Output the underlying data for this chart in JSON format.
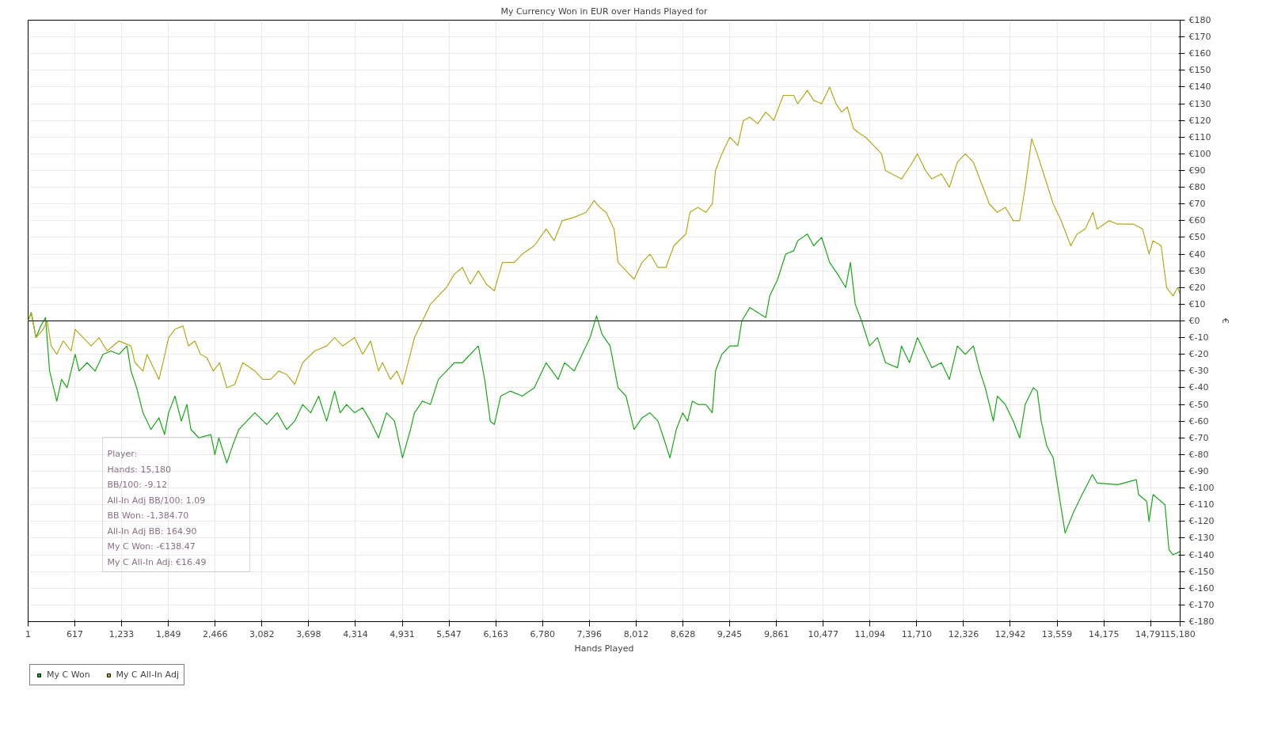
{
  "chart_data": {
    "type": "line",
    "title": "My Currency Won in EUR over Hands Played for",
    "xlabel": "Hands Played",
    "ylabel": "€",
    "xlim": [
      1,
      15180
    ],
    "ylim": [
      -180,
      180
    ],
    "xticks": [
      1,
      617,
      {
        "value": 1233,
        "label": "1,233"
      },
      {
        "value": 1849,
        "label": "1,849"
      },
      {
        "value": 2466,
        "label": "2,466"
      },
      {
        "value": 3082,
        "label": "3,082"
      },
      {
        "value": 3698,
        "label": "3,698"
      },
      {
        "value": 4314,
        "label": "4,314"
      },
      {
        "value": 4931,
        "label": "4,931"
      },
      {
        "value": 5547,
        "label": "5,547"
      },
      {
        "value": 6163,
        "label": "6,163"
      },
      {
        "value": 6780,
        "label": "6,780"
      },
      {
        "value": 7396,
        "label": "7,396"
      },
      {
        "value": 8012,
        "label": "8,012"
      },
      {
        "value": 8628,
        "label": "8,628"
      },
      {
        "value": 9245,
        "label": "9,245"
      },
      {
        "value": 9861,
        "label": "9,861"
      },
      {
        "value": 10477,
        "label": "10,477"
      },
      {
        "value": 11094,
        "label": "11,094"
      },
      {
        "value": 11710,
        "label": "11,710"
      },
      {
        "value": 12326,
        "label": "12,326"
      },
      {
        "value": 12942,
        "label": "12,942"
      },
      {
        "value": 13559,
        "label": "13,559"
      },
      {
        "value": 14175,
        "label": "14,175"
      },
      {
        "value": 14791,
        "label": "14,791"
      },
      {
        "value": 15180,
        "label": "15,180"
      }
    ],
    "yticks": [
      {
        "value": -180,
        "label": "€-180"
      },
      {
        "value": -170,
        "label": "€-170"
      },
      {
        "value": -160,
        "label": "€-160"
      },
      {
        "value": -150,
        "label": "€-150"
      },
      {
        "value": -140,
        "label": "€-140"
      },
      {
        "value": -130,
        "label": "€-130"
      },
      {
        "value": -120,
        "label": "€-120"
      },
      {
        "value": -110,
        "label": "€-110"
      },
      {
        "value": -100,
        "label": "€-100"
      },
      {
        "value": -90,
        "label": "€-90"
      },
      {
        "value": -80,
        "label": "€-80"
      },
      {
        "value": -70,
        "label": "€-70"
      },
      {
        "value": -60,
        "label": "€-60"
      },
      {
        "value": -50,
        "label": "€-50"
      },
      {
        "value": -40,
        "label": "€-40"
      },
      {
        "value": -30,
        "label": "€-30"
      },
      {
        "value": -20,
        "label": "€-20"
      },
      {
        "value": -10,
        "label": "€-10"
      },
      {
        "value": 0,
        "label": "€0"
      },
      {
        "value": 10,
        "label": "€10"
      },
      {
        "value": 20,
        "label": "€20"
      },
      {
        "value": 30,
        "label": "€30"
      },
      {
        "value": 40,
        "label": "€40"
      },
      {
        "value": 50,
        "label": "€50"
      },
      {
        "value": 60,
        "label": "€60"
      },
      {
        "value": 70,
        "label": "€70"
      },
      {
        "value": 80,
        "label": "€80"
      },
      {
        "value": 90,
        "label": "€90"
      },
      {
        "value": 100,
        "label": "€100"
      },
      {
        "value": 110,
        "label": "€110"
      },
      {
        "value": 120,
        "label": "€120"
      },
      {
        "value": 130,
        "label": "€130"
      },
      {
        "value": 140,
        "label": "€140"
      },
      {
        "value": 150,
        "label": "€150"
      },
      {
        "value": 160,
        "label": "€160"
      },
      {
        "value": 170,
        "label": "€170"
      },
      {
        "value": 180,
        "label": "€180"
      }
    ],
    "grid": true,
    "legend": "bottom left",
    "marker": "none",
    "line_style": "solid",
    "ref_lines": [
      {
        "axis": "y",
        "value": 0,
        "label": null,
        "color": "#000000"
      }
    ],
    "annotations": [
      "Player:",
      "Hands: 15,180",
      "BB/100: -9.12",
      "All-In Adj BB/100: 1.09",
      "BB Won: -1,384.70",
      "All-In Adj BB: 164.90",
      "My C Won: -€138.47",
      "My C All-In Adj: €16.49"
    ],
    "series": [
      {
        "name": "My C Won",
        "color": "#1aa61a",
        "x": [
          1,
          42,
          105,
          168,
          231,
          284,
          379,
          442,
          515,
          621,
          673,
          778,
          884,
          989,
          1094,
          1199,
          1304,
          1357,
          1431,
          1515,
          1620,
          1725,
          1799,
          1852,
          1936,
          2020,
          2093,
          2146,
          2251,
          2409,
          2462,
          2514,
          2619,
          2693,
          2777,
          2882,
          2988,
          3146,
          3282,
          3408,
          3514,
          3619,
          3724,
          3829,
          3934,
          4040,
          4113,
          4197,
          4303,
          4408,
          4513,
          4618,
          4723,
          4829,
          4934,
          5039,
          5092,
          5197,
          5302,
          5407,
          5512,
          5618,
          5723,
          5828,
          5933,
          6017,
          6091,
          6144,
          6228,
          6354,
          6512,
          6670,
          6827,
          6985,
          7069,
          7196,
          7301,
          7406,
          7490,
          7564,
          7669,
          7774,
          7879,
          7985,
          8090,
          8195,
          8300,
          8374,
          8458,
          8542,
          8626,
          8690,
          8753,
          8826,
          8931,
          9016,
          9058,
          9142,
          9247,
          9352,
          9405,
          9510,
          9615,
          9720,
          9773,
          9878,
          9983,
          10089,
          10141,
          10268,
          10352,
          10457,
          10562,
          10667,
          10773,
          10836,
          10899,
          10983,
          11088,
          11193,
          11298,
          11456,
          11509,
          11614,
          11719,
          11825,
          11909,
          12035,
          12140,
          12245,
          12350,
          12456,
          12540,
          12613,
          12719,
          12771,
          12876,
          12982,
          13066,
          13139,
          13245,
          13297,
          13350,
          13424,
          13508,
          13665,
          13771,
          13876,
          14023,
          14086,
          14360,
          14602,
          14633,
          14739,
          14770,
          14823,
          14980,
          15033,
          15086,
          15180
        ],
        "values": [
          0,
          5,
          -10,
          -3,
          2,
          -30,
          -48,
          -35,
          -40,
          -20,
          -30,
          -25,
          -30,
          -20,
          -18,
          -20,
          -15,
          -30,
          -40,
          -55,
          -65,
          -58,
          -68,
          -55,
          -45,
          -60,
          -50,
          -65,
          -70,
          -68,
          -80,
          -70,
          -85,
          -75,
          -65,
          -60,
          -55,
          -62,
          -55,
          -65,
          -60,
          -50,
          -55,
          -45,
          -60,
          -42,
          -55,
          -50,
          -55,
          -52,
          -60,
          -70,
          -55,
          -60,
          -82,
          -65,
          -55,
          -48,
          -50,
          -35,
          -30,
          -25,
          -25,
          -20,
          -15,
          -35,
          -60,
          -62,
          -45,
          -42,
          -45,
          -40,
          -25,
          -35,
          -25,
          -30,
          -20,
          -10,
          3,
          -8,
          -15,
          -40,
          -45,
          -65,
          -58,
          -55,
          -60,
          -70,
          -82,
          -65,
          -55,
          -60,
          -48,
          -50,
          -50,
          -55,
          -30,
          -20,
          -15,
          -15,
          0,
          8,
          5,
          2,
          15,
          25,
          40,
          42,
          48,
          52,
          45,
          50,
          35,
          28,
          20,
          35,
          10,
          0,
          -15,
          -10,
          -25,
          -28,
          -15,
          -25,
          -10,
          -20,
          -28,
          -25,
          -35,
          -15,
          -20,
          -15,
          -30,
          -40,
          -60,
          -45,
          -50,
          -60,
          -70,
          -50,
          -40,
          -42,
          -60,
          -75,
          -82,
          -127,
          -115,
          -105,
          -92,
          -97,
          -98,
          -95,
          -104,
          -108,
          -120,
          -104,
          -110,
          -137,
          -140,
          -138
        ]
      },
      {
        "name": "My C All-In Adj",
        "color": "#b3a81c",
        "x": [
          1,
          42,
          105,
          200,
          252,
          305,
          379,
          463,
          568,
          621,
          726,
          831,
          936,
          1041,
          1199,
          1357,
          1410,
          1515,
          1568,
          1620,
          1725,
          1778,
          1852,
          1936,
          2041,
          2114,
          2198,
          2272,
          2356,
          2440,
          2524,
          2619,
          2724,
          2829,
          2988,
          3093,
          3198,
          3303,
          3408,
          3514,
          3619,
          3777,
          3934,
          4040,
          4145,
          4303,
          4408,
          4513,
          4618,
          4671,
          4776,
          4860,
          4934,
          5008,
          5092,
          5197,
          5302,
          5407,
          5512,
          5618,
          5723,
          5828,
          5933,
          6038,
          6144,
          6249,
          6407,
          6512,
          6670,
          6827,
          6932,
          7038,
          7196,
          7353,
          7459,
          7532,
          7617,
          7722,
          7774,
          7879,
          7985,
          8090,
          8195,
          8300,
          8405,
          8510,
          8668,
          8721,
          8826,
          8931,
          9016,
          9058,
          9142,
          9247,
          9352,
          9426,
          9510,
          9615,
          9720,
          9825,
          9951,
          10089,
          10141,
          10268,
          10352,
          10457,
          10562,
          10646,
          10720,
          10794,
          10878,
          10962,
          11035,
          11141,
          11246,
          11298,
          11383,
          11509,
          11614,
          11719,
          11825,
          11909,
          12035,
          12140,
          12245,
          12350,
          12456,
          12540,
          12666,
          12771,
          12876,
          12982,
          13066,
          13139,
          13224,
          13297,
          13403,
          13508,
          13613,
          13739,
          13823,
          13928,
          14033,
          14086,
          14244,
          14349,
          14560,
          14686,
          14770,
          14823,
          14930,
          15002,
          15086,
          15149,
          15180
        ],
        "values": [
          0,
          5,
          -10,
          -5,
          0,
          -15,
          -20,
          -12,
          -18,
          -5,
          -10,
          -15,
          -10,
          -18,
          -12,
          -15,
          -25,
          -30,
          -20,
          -25,
          -35,
          -25,
          -10,
          -5,
          -3,
          -15,
          -12,
          -20,
          -22,
          -30,
          -25,
          -40,
          -38,
          -25,
          -30,
          -35,
          -35,
          -30,
          -32,
          -38,
          -25,
          -18,
          -15,
          -10,
          -15,
          -10,
          -20,
          -12,
          -30,
          -25,
          -35,
          -30,
          -38,
          -25,
          -10,
          0,
          10,
          15,
          20,
          28,
          32,
          22,
          30,
          22,
          18,
          35,
          35,
          40,
          45,
          55,
          48,
          60,
          62,
          65,
          72,
          68,
          65,
          55,
          35,
          30,
          25,
          35,
          40,
          32,
          32,
          45,
          52,
          65,
          68,
          65,
          70,
          90,
          100,
          110,
          105,
          120,
          122,
          118,
          125,
          120,
          135,
          135,
          130,
          138,
          132,
          130,
          140,
          130,
          125,
          128,
          115,
          112,
          110,
          105,
          100,
          90,
          88,
          85,
          92,
          100,
          90,
          85,
          88,
          80,
          95,
          100,
          95,
          85,
          70,
          65,
          68,
          60,
          60,
          80,
          109,
          100,
          85,
          70,
          60,
          45,
          52,
          55,
          65,
          55,
          60,
          58,
          58,
          55,
          40,
          48,
          45,
          20,
          15,
          20,
          16
        ]
      }
    ]
  }
}
